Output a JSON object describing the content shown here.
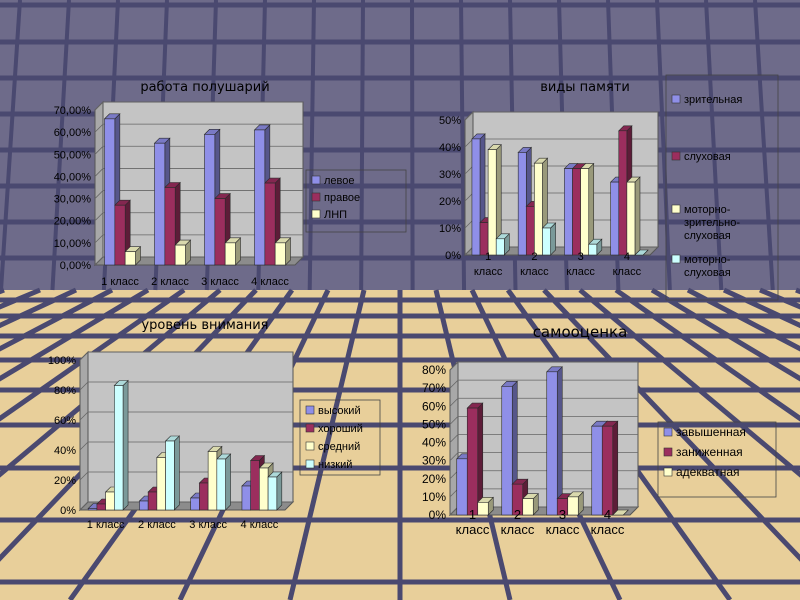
{
  "theme": {
    "wall_color": "#6e6b8a",
    "floor_color": "#e8cf9a",
    "grid_color": "#4a4970",
    "plot_wall": "#c4c4c4",
    "plot_floor": "#8c8c8c",
    "bar_edge": "#2a2a2a"
  },
  "chart_data": [
    {
      "type": "bar",
      "title": "работа полушарий",
      "categories": [
        "1 класс",
        "2 класс",
        "3 класс",
        "4 класс"
      ],
      "y_ticks": [
        "0,00%",
        "10,00%",
        "20,00%",
        "30,00%",
        "40,00%",
        "50,00%",
        "60,00%",
        "70,00%"
      ],
      "ylim": [
        0,
        70
      ],
      "legend_position": "right",
      "series": [
        {
          "name": "левое",
          "color": "#8f8fe8",
          "values": [
            66,
            55,
            59,
            61
          ]
        },
        {
          "name": "правое",
          "color": "#9b2e5e",
          "values": [
            27,
            35,
            30,
            37
          ]
        },
        {
          "name": "ЛНП",
          "color": "#ffffcc",
          "values": [
            6,
            9,
            10,
            10
          ]
        }
      ]
    },
    {
      "type": "bar",
      "title": "виды памяти",
      "categories": [
        "1 класс",
        "2 класс",
        "3 класс",
        "4 класс"
      ],
      "y_ticks": [
        "0%",
        "10%",
        "20%",
        "30%",
        "40%",
        "50%"
      ],
      "ylim": [
        0,
        50
      ],
      "legend_position": "right",
      "series": [
        {
          "name": "зрительная",
          "color": "#8f8fe8",
          "values": [
            43,
            38,
            32,
            27
          ]
        },
        {
          "name": "слуховая",
          "color": "#9b2e5e",
          "values": [
            12,
            18,
            32,
            46
          ]
        },
        {
          "name": "моторно-зрительно-слуховая",
          "color": "#ffffcc",
          "values": [
            39,
            34,
            32,
            27
          ]
        },
        {
          "name": "моторно-слуховая",
          "color": "#ccffff",
          "values": [
            6,
            10,
            4,
            0
          ]
        }
      ]
    },
    {
      "type": "bar",
      "title": "уровень внимания",
      "categories": [
        "1 класс",
        "2 класс",
        "3 класс",
        "4 класс"
      ],
      "y_ticks": [
        "0%",
        "20%",
        "40%",
        "60%",
        "80%",
        "100%"
      ],
      "ylim": [
        0,
        100
      ],
      "legend_position": "right",
      "series": [
        {
          "name": "высокий",
          "color": "#8f8fe8",
          "values": [
            1,
            6,
            8,
            16
          ]
        },
        {
          "name": "хороший",
          "color": "#9b2e5e",
          "values": [
            4,
            12,
            18,
            33
          ]
        },
        {
          "name": "средний",
          "color": "#ffffcc",
          "values": [
            12,
            35,
            39,
            28
          ]
        },
        {
          "name": "низкий",
          "color": "#ccffff",
          "values": [
            83,
            46,
            34,
            22
          ]
        }
      ]
    },
    {
      "type": "bar",
      "title": "самооценка",
      "categories": [
        "1 класс",
        "2 класс",
        "3 класс",
        "4 класс"
      ],
      "y_ticks": [
        "0%",
        "10%",
        "20%",
        "30%",
        "40%",
        "50%",
        "60%",
        "70%",
        "80%"
      ],
      "ylim": [
        0,
        80
      ],
      "legend_position": "right",
      "series": [
        {
          "name": "завышенная",
          "color": "#8f8fe8",
          "values": [
            31,
            71,
            79,
            49
          ]
        },
        {
          "name": "заниженная",
          "color": "#9b2e5e",
          "values": [
            59,
            17,
            9,
            49
          ]
        },
        {
          "name": "адекватная",
          "color": "#ffffcc",
          "values": [
            7,
            9,
            10,
            0
          ]
        }
      ]
    }
  ]
}
